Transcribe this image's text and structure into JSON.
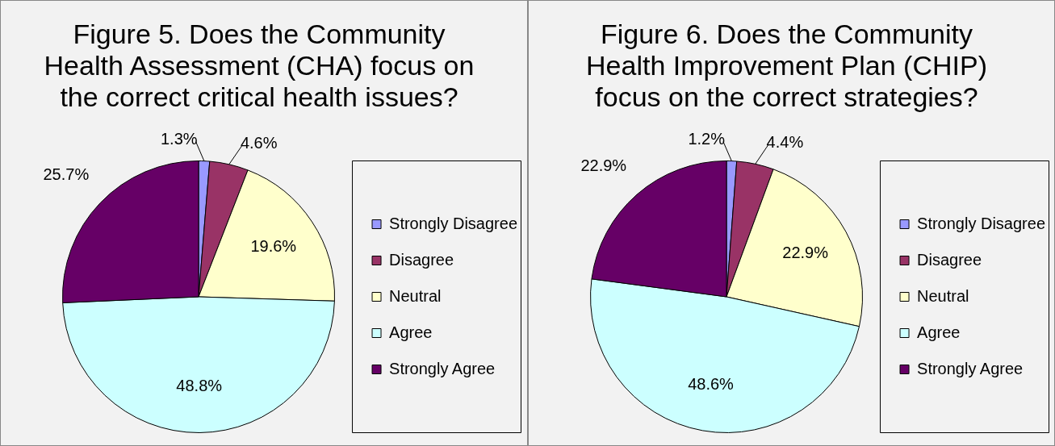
{
  "chart_data": [
    {
      "type": "pie",
      "title": "Figure 5.  Does the Community Health Assessment (CHA) focus on the correct critical health issues?",
      "categories": [
        "Strongly Disagree",
        "Disagree",
        "Neutral",
        "Agree",
        "Strongly Agree"
      ],
      "values": [
        1.3,
        4.6,
        19.6,
        48.8,
        25.7
      ],
      "value_labels": [
        "1.3%",
        "4.6%",
        "19.6%",
        "48.8%",
        "25.7%"
      ],
      "colors": [
        "#9999ff",
        "#993366",
        "#ffffcc",
        "#ccffff",
        "#660066"
      ],
      "legend": "right"
    },
    {
      "type": "pie",
      "title": "Figure 6.  Does the Community Health Improvement Plan (CHIP) focus on the correct strategies?",
      "categories": [
        "Strongly Disagree",
        "Disagree",
        "Neutral",
        "Agree",
        "Strongly Agree"
      ],
      "values": [
        1.2,
        4.4,
        22.9,
        48.6,
        22.9
      ],
      "value_labels": [
        "1.2%",
        "4.4%",
        "22.9%",
        "48.6%",
        "22.9%"
      ],
      "colors": [
        "#9999ff",
        "#993366",
        "#ffffcc",
        "#ccffff",
        "#660066"
      ],
      "legend": "right"
    }
  ]
}
